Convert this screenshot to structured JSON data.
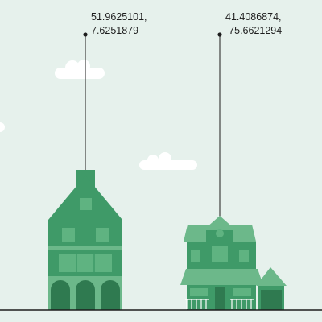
{
  "colors": {
    "background": "#e6f1ec",
    "cloud": "#ffffff",
    "house_main": "#3f9a68",
    "house_dark": "#2f7a50",
    "house_light": "#6cb88a",
    "window": "#5fb381",
    "ground": "#1d1d1d",
    "pin": "#1d1d1d"
  },
  "markers": [
    {
      "latitude": "51.9625101,",
      "longitude": "7.6251879",
      "icon": "european-townhouse-icon"
    },
    {
      "latitude": "41.4086874,",
      "longitude": "-75.6621294",
      "icon": "american-house-icon"
    }
  ]
}
